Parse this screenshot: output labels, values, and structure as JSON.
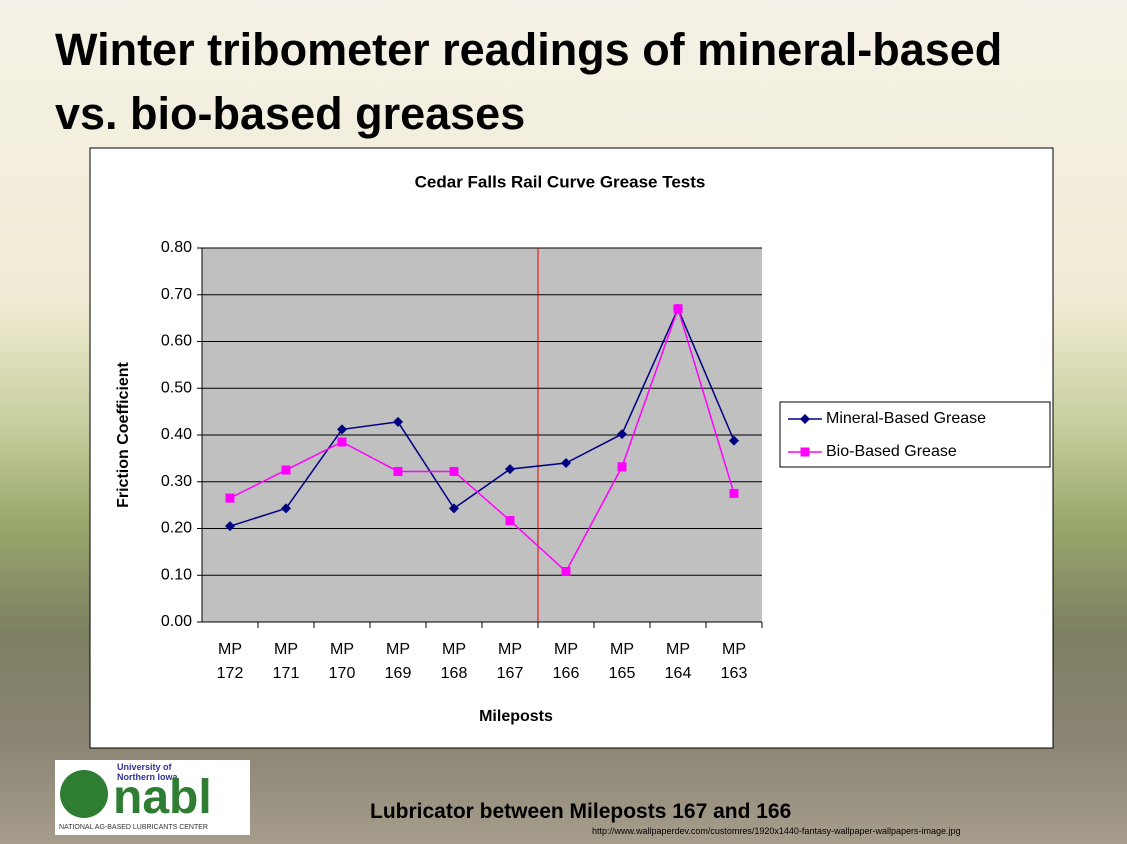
{
  "slide_title": "Winter tribometer readings of mineral-based vs. bio-based greases",
  "caption": "Lubricator between Mileposts 167 and 166",
  "credit": "http://www.wallpaperdev.com/customres/1920x1440-fantasy-wallpaper-wallpapers-image.jpg",
  "logo": {
    "university": "University of Northern Iowa",
    "name": "nabl",
    "center": "NATIONAL AG-BASED LUBRICANTS CENTER"
  },
  "chart_data": {
    "type": "line",
    "title": "Cedar Falls Rail Curve Grease Tests",
    "x_label": "Mileposts",
    "y_label": "Friction Coefficient",
    "categories": [
      "MP 172",
      "MP 171",
      "MP 170",
      "MP 169",
      "MP 168",
      "MP 167",
      "MP 166",
      "MP 165",
      "MP 164",
      "MP 163"
    ],
    "series": [
      {
        "name": "Mineral-Based Grease",
        "color": "#000080",
        "marker": "diamond",
        "values": [
          0.205,
          0.243,
          0.412,
          0.428,
          0.243,
          0.327,
          0.34,
          0.402,
          0.67,
          0.388
        ]
      },
      {
        "name": "Bio-Based Grease",
        "color": "#ff00ff",
        "marker": "square",
        "values": [
          0.265,
          0.325,
          0.385,
          0.322,
          0.322,
          0.217,
          0.108,
          0.332,
          0.67,
          0.275
        ]
      }
    ],
    "ylim": [
      0,
      0.8
    ],
    "yticks": [
      {
        "value": 0,
        "label": "0.00"
      },
      {
        "value": 0.1,
        "label": "0.10"
      },
      {
        "value": 0.2,
        "label": "0.20"
      },
      {
        "value": 0.3,
        "label": "0.30"
      },
      {
        "value": 0.4,
        "label": "0.40"
      },
      {
        "value": 0.5,
        "label": "0.50"
      },
      {
        "value": 0.6,
        "label": "0.60"
      },
      {
        "value": 0.7,
        "label": "0.70"
      },
      {
        "value": 0.8,
        "label": "0.80"
      }
    ],
    "grid": true,
    "plot_background": "#c0c0c0",
    "legend": "right"
  }
}
